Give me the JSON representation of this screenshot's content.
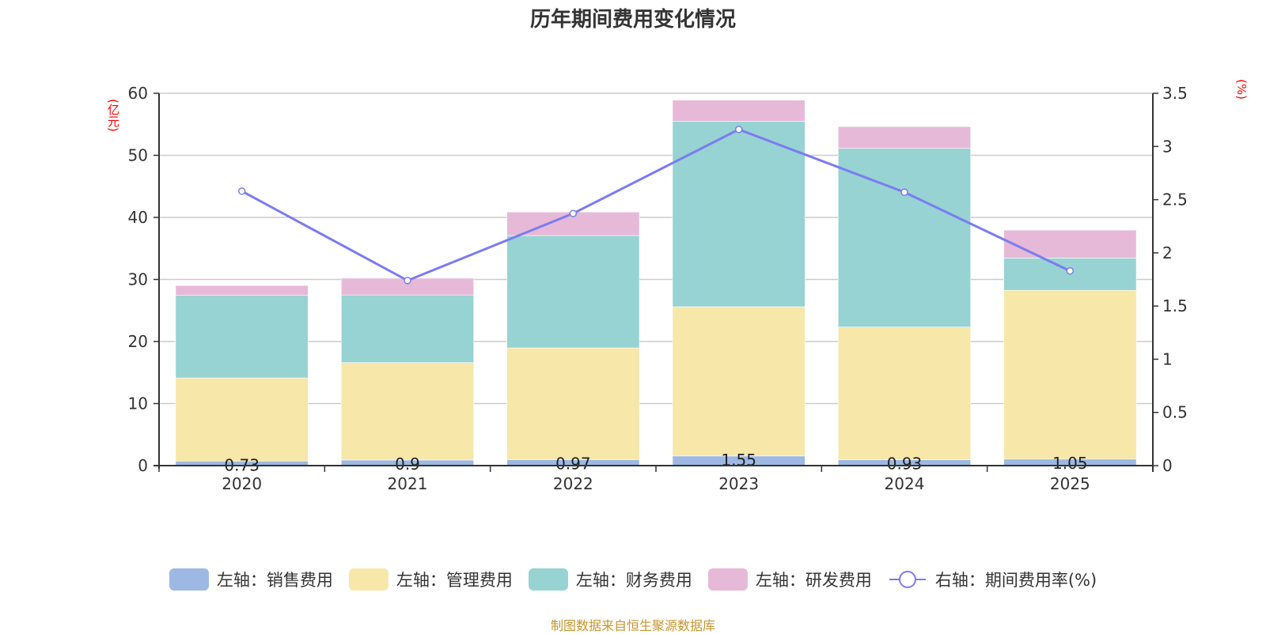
{
  "chart_data": {
    "type": "bar",
    "stacked": true,
    "title": "历年期间费用变化情况",
    "categories": [
      "2020",
      "2021",
      "2022",
      "2023",
      "2024",
      "2025"
    ],
    "left_axis": {
      "label": "(亿元)",
      "ylim": [
        0,
        60
      ],
      "ticks": [
        "0",
        "10",
        "20",
        "30",
        "40",
        "50",
        "60"
      ],
      "tick_values": [
        0,
        10,
        20,
        30,
        40,
        50,
        60
      ]
    },
    "right_axis": {
      "label": "(%)",
      "ylim": [
        0,
        3.5
      ],
      "ticks": [
        "0",
        "0.5",
        "1",
        "1.5",
        "2",
        "2.5",
        "3",
        "3.5"
      ],
      "tick_values": [
        0,
        0.5,
        1,
        1.5,
        2,
        2.5,
        3,
        3.5
      ]
    },
    "grid": true,
    "legend_position": "bottom",
    "series": [
      {
        "name": "左轴：销售费用",
        "axis": "left",
        "type": "bar",
        "color": "#9db8e2",
        "values": [
          0.73,
          0.9,
          0.97,
          1.55,
          0.93,
          1.05
        ],
        "labels": [
          "0.73",
          "0.9",
          "0.97",
          "1.55",
          "0.93",
          "1.05"
        ]
      },
      {
        "name": "左轴：管理费用",
        "axis": "left",
        "type": "bar",
        "color": "#f7e7a9",
        "values": [
          13.4,
          15.7,
          18.0,
          24.05,
          21.4,
          27.2
        ]
      },
      {
        "name": "左轴：财务费用",
        "axis": "left",
        "type": "bar",
        "color": "#97d3d3",
        "values": [
          13.3,
          10.9,
          18.1,
          29.9,
          28.8,
          5.2
        ]
      },
      {
        "name": "左轴：研发费用",
        "axis": "left",
        "type": "bar",
        "color": "#e7b9d8",
        "values": [
          1.6,
          2.7,
          3.8,
          3.4,
          3.5,
          4.5
        ]
      },
      {
        "name": "右轴：期间费用率(%)",
        "axis": "right",
        "type": "line",
        "color": "#7b7cf0",
        "values": [
          2.58,
          1.74,
          2.37,
          3.16,
          2.57,
          1.83
        ]
      }
    ]
  },
  "footer": {
    "source": "制图数据来自恒生聚源数据库"
  }
}
